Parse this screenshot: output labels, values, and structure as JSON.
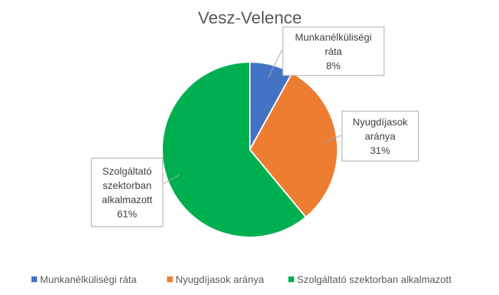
{
  "chart_data": {
    "type": "pie",
    "title": "Vesz-Velence",
    "slices": [
      {
        "label": "Munkanélküliségi ráta",
        "label_lines": [
          "Munkanélküliségi",
          "ráta"
        ],
        "value": 8,
        "value_label": "8%",
        "color": "#4472C4"
      },
      {
        "label": "Nyugdíjasok aránya",
        "label_lines": [
          "Nyugdíjasok",
          "aránya"
        ],
        "value": 31,
        "value_label": "31%",
        "color": "#ED7D31"
      },
      {
        "label": "Szolgáltató szektorban alkalmazott",
        "label_lines": [
          "Szolgáltató",
          "szektorban",
          "alkalmazott"
        ],
        "value": 61,
        "value_label": "61%",
        "color": "#00B050"
      }
    ],
    "legend": {
      "position": "bottom",
      "entries": [
        "Munkanélküliségi ráta",
        "Nyugdíjasok aránya",
        "Szolgáltató szektorban alkalmazott"
      ]
    }
  }
}
